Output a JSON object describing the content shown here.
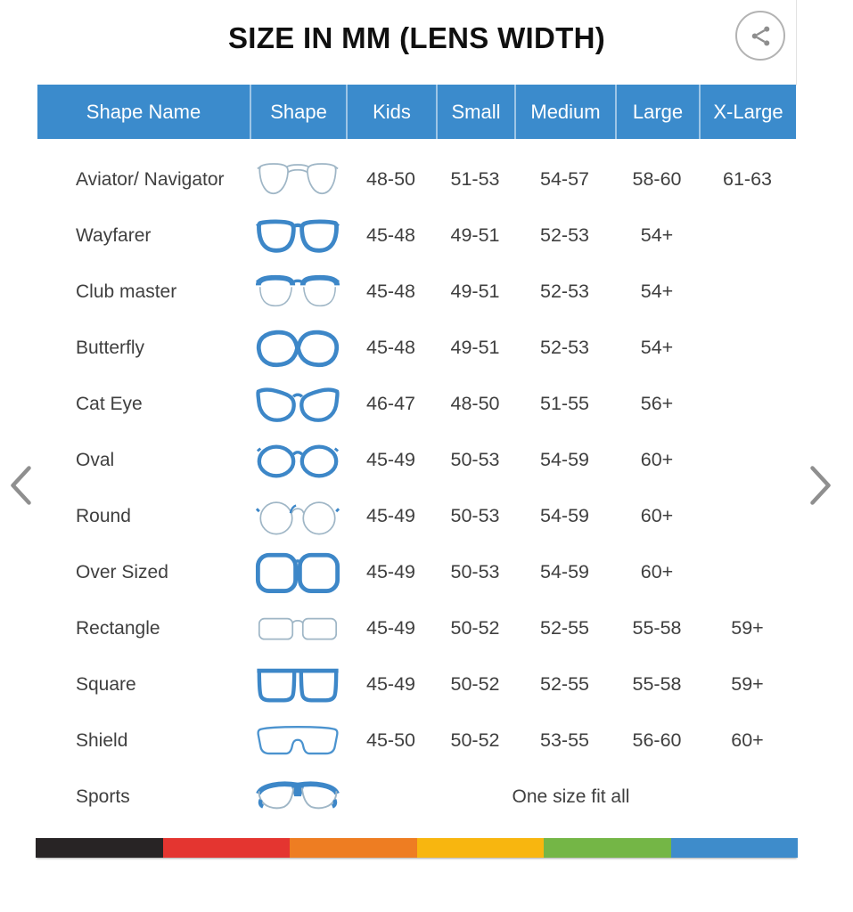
{
  "title": "SIZE IN MM (LENS WIDTH)",
  "share_button": {
    "icon": "share-icon"
  },
  "carousel": {
    "prev_icon": "chevron-left-icon",
    "next_icon": "chevron-right-icon"
  },
  "colors": {
    "header_bg": "#3b8bcc",
    "header_text": "#ffffff",
    "frame_blue": "#3d87c8",
    "frame_light_outline": "#9fb6c6",
    "row_text": "#3f3f3f",
    "title_text": "#101010",
    "chevron_gray": "#8f8f8f",
    "share_gray": "#8e8e8e"
  },
  "chart_data": {
    "type": "table",
    "title": "SIZE IN MM (LENS WIDTH)",
    "columns": [
      "Shape Name",
      "Shape",
      "Kids",
      "Small",
      "Medium",
      "Large",
      "X-Large"
    ],
    "rows": [
      {
        "shape_name": "Aviator/ Navigator",
        "icon": "aviator-glasses-icon",
        "kids": "48-50",
        "small": "51-53",
        "medium": "54-57",
        "large": "58-60",
        "x_large": "61-63"
      },
      {
        "shape_name": "Wayfarer",
        "icon": "wayfarer-glasses-icon",
        "kids": "45-48",
        "small": "49-51",
        "medium": "52-53",
        "large": "54+",
        "x_large": ""
      },
      {
        "shape_name": "Club master",
        "icon": "clubmaster-glasses-icon",
        "kids": "45-48",
        "small": "49-51",
        "medium": "52-53",
        "large": "54+",
        "x_large": ""
      },
      {
        "shape_name": "Butterfly",
        "icon": "butterfly-glasses-icon",
        "kids": "45-48",
        "small": "49-51",
        "medium": "52-53",
        "large": "54+",
        "x_large": ""
      },
      {
        "shape_name": "Cat Eye",
        "icon": "cateye-glasses-icon",
        "kids": "46-47",
        "small": "48-50",
        "medium": "51-55",
        "large": "56+",
        "x_large": ""
      },
      {
        "shape_name": "Oval",
        "icon": "oval-glasses-icon",
        "kids": "45-49",
        "small": "50-53",
        "medium": "54-59",
        "large": "60+",
        "x_large": ""
      },
      {
        "shape_name": "Round",
        "icon": "round-glasses-icon",
        "kids": "45-49",
        "small": "50-53",
        "medium": "54-59",
        "large": "60+",
        "x_large": ""
      },
      {
        "shape_name": "Over Sized",
        "icon": "oversized-glasses-icon",
        "kids": "45-49",
        "small": "50-53",
        "medium": "54-59",
        "large": "60+",
        "x_large": ""
      },
      {
        "shape_name": "Rectangle",
        "icon": "rectangle-glasses-icon",
        "kids": "45-49",
        "small": "50-52",
        "medium": "52-55",
        "large": "55-58",
        "x_large": "59+"
      },
      {
        "shape_name": "Square",
        "icon": "square-glasses-icon",
        "kids": "45-49",
        "small": "50-52",
        "medium": "52-55",
        "large": "55-58",
        "x_large": "59+"
      },
      {
        "shape_name": "Shield",
        "icon": "shield-glasses-icon",
        "kids": "45-50",
        "small": "50-52",
        "medium": "53-55",
        "large": "56-60",
        "x_large": "60+"
      },
      {
        "shape_name": "Sports",
        "icon": "sports-glasses-icon",
        "span_text": "One size fit all"
      }
    ]
  },
  "footer_stripe_colors": [
    "#282425",
    "#e43530",
    "#ee7d22",
    "#f8b60f",
    "#74b646",
    "#3e8ccb"
  ]
}
